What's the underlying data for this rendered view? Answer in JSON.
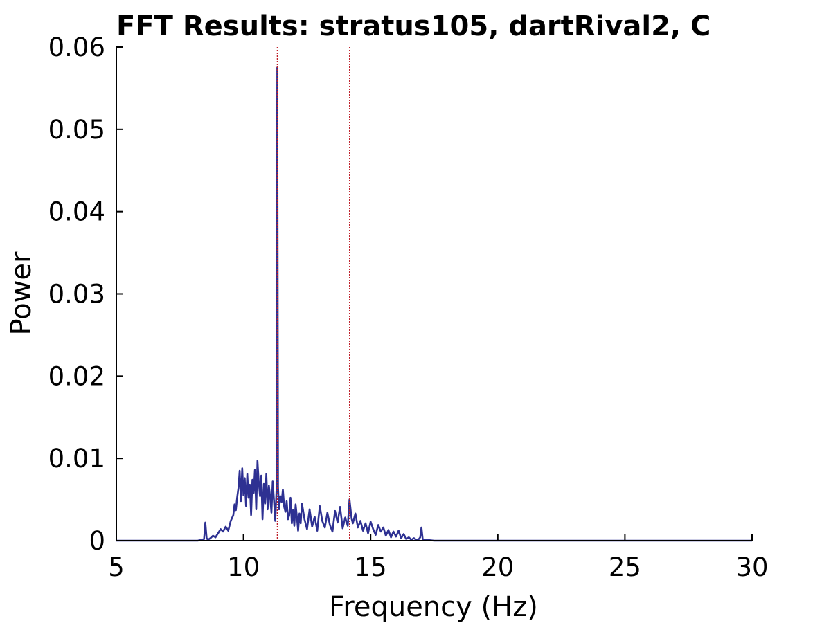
{
  "chart_data": {
    "type": "line",
    "title": "FFT Results: stratus105, dartRival2, C",
    "xlabel": "Frequency (Hz)",
    "ylabel": "Power",
    "xlim": [
      5,
      30
    ],
    "ylim": [
      0,
      0.06
    ],
    "xticks": [
      5,
      10,
      15,
      20,
      25,
      30
    ],
    "xtick_labels": [
      "5",
      "10",
      "15",
      "20",
      "25",
      "30"
    ],
    "yticks": [
      0,
      0.01,
      0.02,
      0.03,
      0.04,
      0.05,
      0.06
    ],
    "ytick_labels": [
      "0",
      "0.01",
      "0.02",
      "0.03",
      "0.04",
      "0.05",
      "0.06"
    ],
    "grid": false,
    "colors": {
      "series": "#2e3192",
      "marker_lines": "#c0202a",
      "axes": "#000000"
    },
    "marker_lines": {
      "style": "dotted",
      "x": [
        11.33,
        14.17
      ]
    },
    "series": [
      {
        "x": [
          5.0,
          8.2,
          8.35,
          8.45,
          8.5,
          8.55,
          8.6,
          8.7,
          8.8,
          8.9,
          9.0,
          9.1,
          9.2,
          9.3,
          9.4,
          9.5,
          9.6,
          9.65,
          9.7,
          9.75,
          9.8,
          9.85,
          9.9,
          9.95,
          10.0,
          10.05,
          10.1,
          10.15,
          10.2,
          10.25,
          10.3,
          10.35,
          10.4,
          10.45,
          10.5,
          10.55,
          10.6,
          10.65,
          10.7,
          10.75,
          10.8,
          10.85,
          10.9,
          10.95,
          11.0,
          11.05,
          11.1,
          11.15,
          11.2,
          11.25,
          11.3,
          11.33,
          11.36,
          11.4,
          11.45,
          11.5,
          11.55,
          11.6,
          11.65,
          11.7,
          11.75,
          11.8,
          11.85,
          11.9,
          11.95,
          12.0,
          12.05,
          12.1,
          12.15,
          12.2,
          12.25,
          12.3,
          12.4,
          12.5,
          12.6,
          12.7,
          12.8,
          12.9,
          13.0,
          13.1,
          13.2,
          13.3,
          13.4,
          13.5,
          13.6,
          13.7,
          13.8,
          13.9,
          14.0,
          14.1,
          14.17,
          14.25,
          14.3,
          14.4,
          14.5,
          14.6,
          14.7,
          14.8,
          14.9,
          15.0,
          15.1,
          15.2,
          15.3,
          15.4,
          15.5,
          15.6,
          15.7,
          15.8,
          15.9,
          16.0,
          16.1,
          16.2,
          16.3,
          16.4,
          16.5,
          16.6,
          16.7,
          16.8,
          16.9,
          16.95,
          17.0,
          17.05,
          17.2,
          17.5,
          18.0,
          30.0
        ],
        "y": [
          0,
          0,
          0.0001,
          0.0002,
          0.0022,
          0.0003,
          0.0001,
          0.0003,
          0.0006,
          0.0004,
          0.0009,
          0.0014,
          0.0011,
          0.0017,
          0.0012,
          0.0024,
          0.0031,
          0.0044,
          0.0037,
          0.0052,
          0.0064,
          0.0085,
          0.0048,
          0.0088,
          0.0055,
          0.0076,
          0.0042,
          0.0081,
          0.0052,
          0.0068,
          0.0031,
          0.0074,
          0.0058,
          0.0086,
          0.0038,
          0.0097,
          0.0072,
          0.0054,
          0.0079,
          0.0026,
          0.0069,
          0.0045,
          0.0081,
          0.0038,
          0.0067,
          0.0052,
          0.0034,
          0.0072,
          0.0048,
          0.0024,
          0.0061,
          0.0575,
          0.0065,
          0.0038,
          0.0054,
          0.0047,
          0.0062,
          0.0041,
          0.0035,
          0.0048,
          0.0026,
          0.0031,
          0.0052,
          0.0021,
          0.0037,
          0.0018,
          0.0044,
          0.0029,
          0.0012,
          0.0033,
          0.0021,
          0.0045,
          0.0026,
          0.0014,
          0.0038,
          0.0017,
          0.0029,
          0.0012,
          0.0042,
          0.0024,
          0.0016,
          0.0034,
          0.0019,
          0.0011,
          0.0036,
          0.0022,
          0.0041,
          0.0015,
          0.0028,
          0.0018,
          0.005,
          0.0027,
          0.0021,
          0.0033,
          0.0016,
          0.0024,
          0.0012,
          0.0021,
          0.0009,
          0.0023,
          0.0014,
          0.0007,
          0.0019,
          0.0011,
          0.0016,
          0.0006,
          0.0013,
          0.0004,
          0.0011,
          0.0005,
          0.0012,
          0.0003,
          0.0008,
          0.0002,
          0.0004,
          0.0001,
          0.0003,
          0.0001,
          0.0002,
          0.0004,
          0.0016,
          0.0001,
          0.0001,
          0.0,
          0,
          0
        ]
      }
    ]
  }
}
